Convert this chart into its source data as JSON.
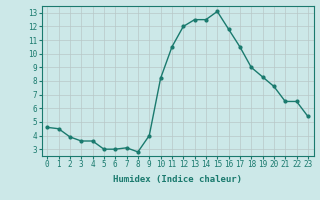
{
  "x": [
    0,
    1,
    2,
    3,
    4,
    5,
    6,
    7,
    8,
    9,
    10,
    11,
    12,
    13,
    14,
    15,
    16,
    17,
    18,
    19,
    20,
    21,
    22,
    23
  ],
  "y": [
    4.6,
    4.5,
    3.9,
    3.6,
    3.6,
    3.0,
    3.0,
    3.1,
    2.8,
    4.0,
    8.2,
    10.5,
    12.0,
    12.5,
    12.5,
    13.1,
    11.8,
    10.5,
    9.0,
    8.3,
    7.6,
    6.5,
    6.5,
    5.4
  ],
  "line_color": "#1a7a6e",
  "marker": "o",
  "marker_size": 2.0,
  "linewidth": 1.0,
  "xlabel": "Humidex (Indice chaleur)",
  "xlim": [
    -0.5,
    23.5
  ],
  "ylim": [
    2.5,
    13.5
  ],
  "yticks": [
    3,
    4,
    5,
    6,
    7,
    8,
    9,
    10,
    11,
    12,
    13
  ],
  "xticks": [
    0,
    1,
    2,
    3,
    4,
    5,
    6,
    7,
    8,
    9,
    10,
    11,
    12,
    13,
    14,
    15,
    16,
    17,
    18,
    19,
    20,
    21,
    22,
    23
  ],
  "bg_color": "#cce8e8",
  "grid_color": "#b8c8c8",
  "line_spine_color": "#1a7a6e",
  "tick_fontsize": 5.5,
  "xlabel_fontsize": 6.5
}
